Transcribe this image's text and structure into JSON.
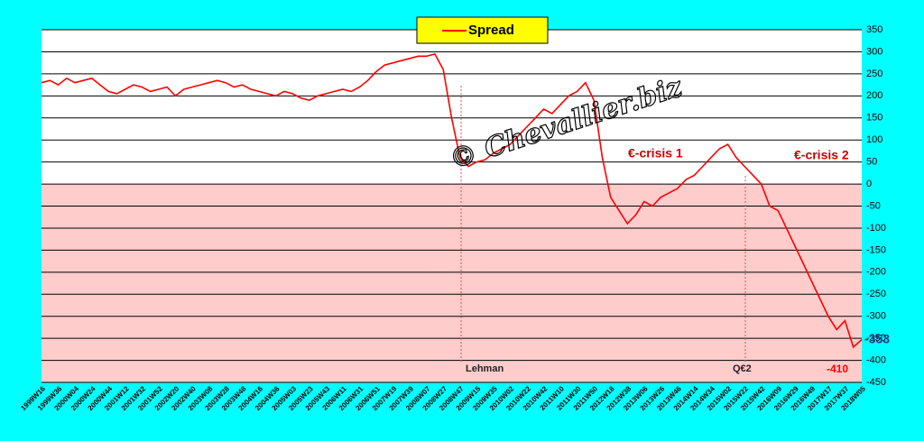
{
  "chart_data": {
    "type": "line",
    "categories": [
      "1999W16",
      null,
      "1999W36",
      null,
      "2000W04",
      null,
      "2000W24",
      null,
      "2000W44",
      null,
      "2001W12",
      null,
      "2001W32",
      null,
      "2001W52",
      null,
      "2002W20",
      null,
      "2002W40",
      null,
      "2003W08",
      null,
      "2003W28",
      null,
      "2003W48",
      null,
      "2004W16",
      null,
      "2004W36",
      null,
      "2005W03",
      null,
      "2005W23",
      null,
      "2005W43",
      null,
      "2006W11",
      null,
      "2006W31",
      null,
      "2006W51",
      null,
      "2007W19",
      null,
      "2007W39",
      null,
      "2008W07",
      null,
      "2008W27",
      null,
      "2008W47",
      null,
      "2009W15",
      null,
      "2009W35",
      null,
      "2010W02",
      null,
      "2010W22",
      null,
      "2010W42",
      null,
      "2011W10",
      null,
      "2011W30",
      null,
      "2011W50",
      null,
      "2012W18",
      null,
      "2012W38",
      null,
      "2013W06",
      null,
      "2013W26",
      null,
      "2013W46",
      null,
      "2014W14",
      null,
      "2014W34",
      null,
      "2015W02",
      null,
      "2015W22",
      null,
      "2015W42",
      null,
      "2016W09",
      null,
      "2016W29",
      null,
      "2016W49",
      null,
      "2017W17",
      null,
      "2017W37",
      null,
      "2018W05"
    ],
    "series": [
      {
        "name": "Spread",
        "color": "#ff0000",
        "values": [
          230,
          235,
          225,
          240,
          230,
          235,
          240,
          225,
          210,
          205,
          215,
          225,
          220,
          210,
          215,
          220,
          200,
          215,
          220,
          225,
          230,
          235,
          230,
          220,
          225,
          215,
          210,
          205,
          200,
          210,
          205,
          195,
          190,
          200,
          205,
          210,
          215,
          210,
          220,
          235,
          255,
          270,
          275,
          280,
          285,
          290,
          290,
          295,
          260,
          150,
          60,
          40,
          50,
          55,
          70,
          80,
          90,
          110,
          130,
          150,
          170,
          160,
          180,
          200,
          210,
          230,
          190,
          60,
          -30,
          -60,
          -90,
          -70,
          -40,
          -50,
          -30,
          -20,
          -10,
          10,
          20,
          40,
          60,
          80,
          90,
          60,
          40,
          20,
          0,
          -50,
          -60,
          -100,
          -140,
          -180,
          -220,
          -260,
          -300,
          -330,
          -310,
          -370,
          -353
        ]
      }
    ],
    "ylim": [
      -450,
      350
    ],
    "yticks": [
      -450,
      -400,
      -350,
      -300,
      -250,
      -200,
      -150,
      -100,
      -50,
      0,
      50,
      100,
      150,
      200,
      250,
      300,
      350
    ],
    "grid": true,
    "annotations": [
      "Lehman",
      "Q€2",
      "€-crisis  1",
      "€-crisis 2",
      "-410"
    ],
    "watermark": "© Chevallier.biz"
  }
}
